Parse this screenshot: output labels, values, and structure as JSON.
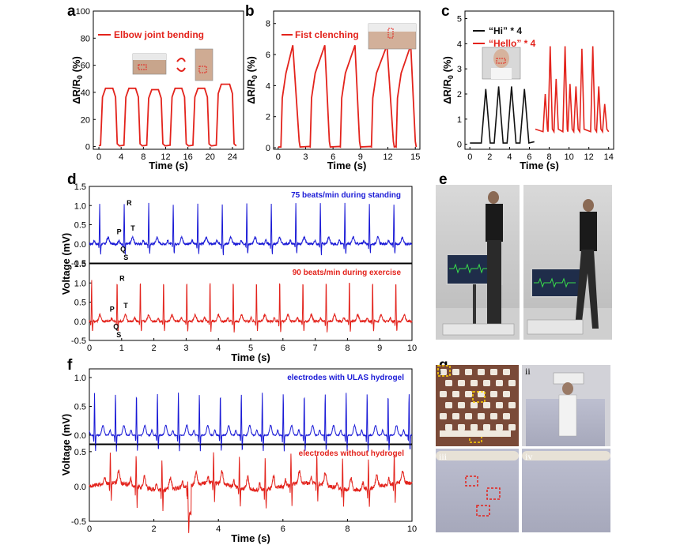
{
  "panel_letters": {
    "a": "a",
    "b": "b",
    "c": "c",
    "d": "d",
    "e": "e",
    "f": "f",
    "g": "g"
  },
  "colors": {
    "red": "#e3231c",
    "blue": "#1a1ad6",
    "black": "#111111"
  },
  "chart_data": [
    {
      "id": "a",
      "type": "line",
      "xlabel": "Time (s)",
      "ylabel": "ΔR/R0 (%)",
      "xlim": [
        -1,
        26
      ],
      "ylim": [
        -2,
        100
      ],
      "xticks": [
        0,
        4,
        8,
        12,
        16,
        20,
        24
      ],
      "yticks": [
        0,
        20,
        40,
        60,
        80,
        100
      ],
      "series": [
        {
          "name": "Elbow joint bending",
          "color": "#e3231c",
          "peaks": [
            {
              "t0": 0.3,
              "t1": 3.3
            },
            {
              "t0": 4.5,
              "t1": 7.4
            },
            {
              "t0": 8.6,
              "t1": 11.5
            },
            {
              "t0": 12.8,
              "t1": 15.7
            },
            {
              "t0": 16.9,
              "t1": 19.8
            },
            {
              "t0": 21.1,
              "t1": 24.3
            }
          ],
          "peak_values": [
            43,
            43,
            42,
            43,
            43,
            46
          ]
        }
      ]
    },
    {
      "id": "b",
      "type": "line",
      "xlabel": "Time (s)",
      "ylabel": "ΔR/R0 (%)",
      "xlim": [
        -0.5,
        15.5
      ],
      "ylim": [
        -0.1,
        8.8
      ],
      "xticks": [
        0,
        3,
        6,
        9,
        12,
        15
      ],
      "yticks": [
        0,
        2,
        4,
        6,
        8
      ],
      "series": [
        {
          "name": "Fist clenching",
          "color": "#e3231c",
          "cycles": [
            {
              "rise": 0.3,
              "peak": 1.6,
              "fall": 2.3
            },
            {
              "rise": 3.5,
              "peak": 5.1,
              "fall": 5.6
            },
            {
              "rise": 6.8,
              "peak": 8.4,
              "fall": 8.9
            },
            {
              "rise": 10.2,
              "peak": 11.9,
              "fall": 12.6
            },
            {
              "rise": 12.9,
              "peak": 14.5,
              "fall": 15.0
            }
          ],
          "peak_values": [
            6.6,
            6.6,
            6.6,
            6.6,
            6.6
          ]
        }
      ]
    },
    {
      "id": "c",
      "type": "line",
      "xlabel": "Time (s)",
      "ylabel": "ΔR/R0 (%)",
      "xlim": [
        -0.5,
        14.5
      ],
      "ylim": [
        -0.2,
        5.3
      ],
      "xticks": [
        0,
        2,
        4,
        6,
        8,
        10,
        12,
        14
      ],
      "yticks": [
        0,
        1,
        2,
        3,
        4,
        5
      ],
      "series": [
        {
          "name": "“Hi” * 4",
          "color": "#111111",
          "x_range": [
            0,
            6.5
          ],
          "peak_times": [
            1.6,
            2.9,
            4.2,
            5.5
          ],
          "peak_values": [
            2.2,
            2.3,
            2.3,
            2.2
          ]
        },
        {
          "name": "“Hello” * 4",
          "color": "#e3231c",
          "x_range": [
            6.6,
            14.0
          ],
          "peak_times": [
            7.6,
            8.1,
            8.7,
            9.6,
            10.1,
            10.7,
            11.3,
            12.4,
            13.0,
            13.6
          ],
          "peak_values": [
            2.0,
            3.9,
            2.6,
            3.9,
            2.4,
            2.3,
            3.8,
            3.9,
            2.3,
            1.6
          ]
        }
      ]
    },
    {
      "id": "d",
      "type": "line",
      "xlabel": "Time (s)",
      "ylabel": "Voltage (mV)",
      "xlim": [
        0,
        10
      ],
      "xticks": [
        0,
        1,
        2,
        3,
        4,
        5,
        6,
        7,
        8,
        9,
        10
      ],
      "subplots": [
        {
          "name": "75 beats/min during standing",
          "color": "#1a1ad6",
          "ylim": [
            -0.5,
            1.5
          ],
          "yticks": [
            -0.5,
            0.0,
            0.5,
            1.0,
            1.5
          ],
          "beat_times": [
            0.32,
            1.08,
            1.84,
            2.6,
            3.36,
            4.12,
            4.88,
            5.64,
            6.4,
            7.16,
            7.92,
            8.68,
            9.44
          ],
          "r_amplitude": 1.05,
          "labels": {
            "P": "P",
            "Q": "Q",
            "R": "R",
            "S": "S",
            "T": "T"
          }
        },
        {
          "name": "90 beats/min during exercise",
          "color": "#e3231c",
          "ylim": [
            -0.5,
            1.5
          ],
          "yticks": [
            -0.5,
            0.0,
            0.5,
            1.0,
            1.5
          ],
          "beat_times": [
            0.07,
            0.86,
            1.58,
            2.3,
            3.02,
            3.74,
            4.46,
            5.18,
            5.9,
            6.62,
            7.34,
            8.06,
            8.78,
            9.5
          ],
          "r_amplitude": 1.1,
          "labels": {
            "P": "P",
            "Q": "Q",
            "R": "R",
            "S": "S",
            "T": "T"
          }
        }
      ]
    },
    {
      "id": "f",
      "type": "line",
      "xlabel": "Time (s)",
      "ylabel": "Voltage (mV)",
      "xlim": [
        0,
        10
      ],
      "xticks": [
        0,
        2,
        4,
        6,
        8,
        10
      ],
      "subplots": [
        {
          "name": "electrodes with ULAS hydrogel",
          "color": "#1a1ad6",
          "ylim": [
            -0.15,
            1.15
          ],
          "yticks": [
            0.0,
            0.5,
            1.0
          ],
          "beat_times": [
            0.16,
            0.81,
            1.46,
            2.11,
            2.76,
            3.41,
            4.06,
            4.71,
            5.36,
            6.01,
            6.66,
            7.31,
            7.96,
            8.61,
            9.26,
            9.91
          ],
          "r_amplitude": 0.73
        },
        {
          "name": "electrodes without hydrogel",
          "color": "#e3231c",
          "ylim": [
            -0.5,
            0.6
          ],
          "yticks": [
            -0.5,
            0.0,
            0.5
          ],
          "beat_times": [
            0.65,
            1.45,
            2.25,
            3.05,
            3.85,
            4.65,
            5.45,
            6.25,
            7.05,
            7.85,
            8.65,
            9.45
          ],
          "r_amplitude": 0.45
        }
      ]
    }
  ],
  "panel_g_labels": {
    "i": "i",
    "ii": "ii",
    "iii": "iii",
    "iv": "iv"
  }
}
